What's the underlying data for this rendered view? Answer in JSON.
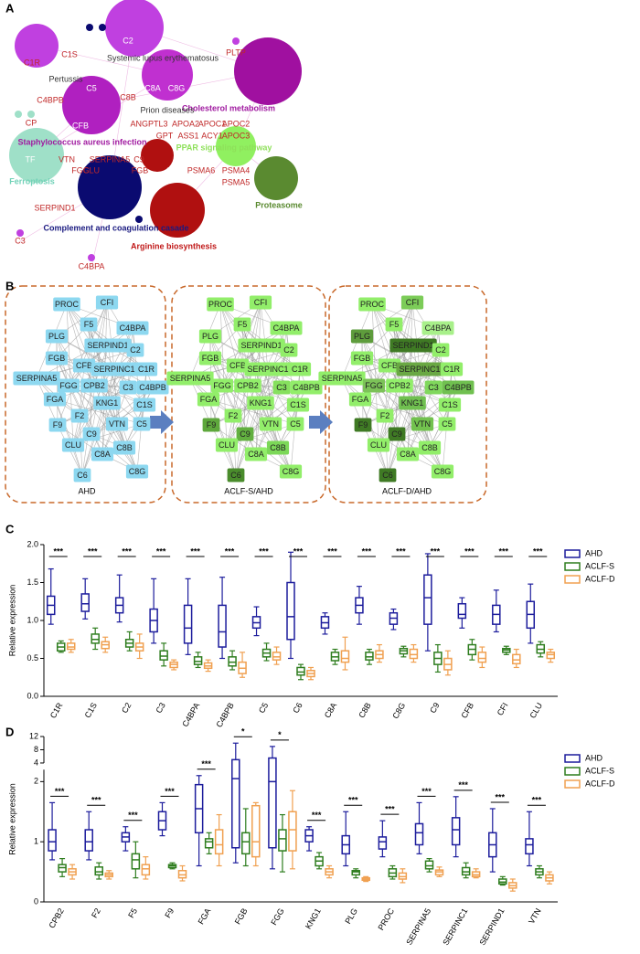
{
  "panel_a": {
    "label": "A",
    "texts": [
      {
        "label": "C1R",
        "color": "#c02828"
      },
      {
        "label": "C1S",
        "color": "#c02828"
      },
      {
        "label": "C2",
        "color": "#ffffff"
      },
      {
        "label": "Systemic lupus erythematosus",
        "color": "#333333"
      },
      {
        "label": "Pertussis",
        "color": "#333333"
      },
      {
        "label": "C4BPB",
        "color": "#c02828"
      },
      {
        "label": "C5",
        "color": "#ffffff"
      },
      {
        "label": "CFB",
        "color": "#ffffff"
      },
      {
        "label": "C8B",
        "color": "#c02828"
      },
      {
        "label": "C8A",
        "color": "#ffffff"
      },
      {
        "label": "C8G",
        "color": "#ffffff"
      },
      {
        "label": "PLTP",
        "color": "#c02828"
      },
      {
        "label": "Cholesterol metabolism",
        "color": "#a01aa0"
      },
      {
        "label": "Prion diseases",
        "color": "#333333"
      },
      {
        "label": "ANGPTL3",
        "color": "#c02828"
      },
      {
        "label": "APOA2",
        "color": "#c02828"
      },
      {
        "label": "APOC1",
        "color": "#c02828"
      },
      {
        "label": "APOC2",
        "color": "#c02828"
      },
      {
        "label": "GPT",
        "color": "#c02828"
      },
      {
        "label": "ASS1",
        "color": "#c02828"
      },
      {
        "label": "ACY1",
        "color": "#c02828"
      },
      {
        "label": "APOC3",
        "color": "#c02828"
      },
      {
        "label": "CP",
        "color": "#c02828"
      },
      {
        "label": "Staphylococcus aureus infection",
        "color": "#a01aa0"
      },
      {
        "label": "TF",
        "color": "#ffffff"
      },
      {
        "label": "VTN",
        "color": "#c02828"
      },
      {
        "label": "FGG",
        "color": "#c02828"
      },
      {
        "label": "SERPINA5",
        "color": "#c02828"
      },
      {
        "label": "CLU",
        "color": "#c02828"
      },
      {
        "label": "C9",
        "color": "#c02828"
      },
      {
        "label": "FGB",
        "color": "#c02828"
      },
      {
        "label": "PPAR signaling pathway",
        "color": "#8ee05a"
      },
      {
        "label": "Ferroptosis",
        "color": "#72d2b8"
      },
      {
        "label": "GOT1",
        "color": "#ffffff"
      },
      {
        "label": "PSMA6",
        "color": "#c02828"
      },
      {
        "label": "PSMA4",
        "color": "#c02828"
      },
      {
        "label": "Proteasome",
        "color": "#5a8a30"
      },
      {
        "label": "SERPIND1",
        "color": "#c02828"
      },
      {
        "label": "PSMA5",
        "color": "#c02828"
      },
      {
        "label": "Complement and coagulation casade",
        "color": "#1a1a80"
      },
      {
        "label": "C3",
        "color": "#c02828"
      },
      {
        "label": "Arginine biosynthesis",
        "color": "#c01818"
      },
      {
        "label": "C4BPA",
        "color": "#c02828"
      }
    ]
  },
  "panel_b": {
    "label": "B",
    "nodes": [
      "PROC",
      "CFI",
      "F5",
      "C4BPA",
      "PLG",
      "SERPIND1",
      "C2",
      "FGB",
      "CFB",
      "SERPINC1",
      "C1R",
      "SERPINA5",
      "FGG",
      "CPB2",
      "C3",
      "C4BPB",
      "FGA",
      "KNG1",
      "C1S",
      "F2",
      "VTN",
      "C5",
      "F9",
      "C9",
      "CLU",
      "C8A",
      "C8B",
      "C6",
      "C8G"
    ],
    "networks": [
      {
        "title": "AHD",
        "colors": [
          "#8dd8f0",
          "#8dd8f0",
          "#8dd8f0",
          "#8dd8f0",
          "#8dd8f0",
          "#8dd8f0",
          "#8dd8f0",
          "#8dd8f0",
          "#8dd8f0",
          "#8dd8f0",
          "#8dd8f0",
          "#8dd8f0",
          "#8dd8f0",
          "#8dd8f0",
          "#8dd8f0",
          "#8dd8f0",
          "#8dd8f0",
          "#8dd8f0",
          "#8dd8f0",
          "#8dd8f0",
          "#8dd8f0",
          "#8dd8f0",
          "#8dd8f0",
          "#8dd8f0",
          "#8dd8f0",
          "#8dd8f0",
          "#8dd8f0",
          "#8dd8f0",
          "#8dd8f0"
        ]
      },
      {
        "title": "ACLF-S/AHD",
        "colors": [
          "#92ee6a",
          "#92ee6a",
          "#92ee6a",
          "#92ee6a",
          "#92ee6a",
          "#92ee6a",
          "#92ee6a",
          "#92ee6a",
          "#92ee6a",
          "#92ee6a",
          "#92ee6a",
          "#92ee6a",
          "#92ee6a",
          "#92ee6a",
          "#86e05e",
          "#92ee6a",
          "#92ee6a",
          "#92ee6a",
          "#92ee6a",
          "#92ee6a",
          "#92ee6a",
          "#92ee6a",
          "#5ea83c",
          "#62b040",
          "#92ee6a",
          "#92ee6a",
          "#7cd858",
          "#4a8c2c",
          "#92ee6a"
        ]
      },
      {
        "title": "ACLF-D/AHD",
        "colors": [
          "#92ee6a",
          "#7ccc58",
          "#92ee6a",
          "#a8f08a",
          "#5e9c3c",
          "#3f7a24",
          "#92ee6a",
          "#92ee6a",
          "#92ee6a",
          "#6aa844",
          "#92ee6a",
          "#92ee6a",
          "#7cc258",
          "#92ee6a",
          "#80d85c",
          "#70c050",
          "#92ee6a",
          "#70c050",
          "#92ee6a",
          "#92ee6a",
          "#72c24e",
          "#92ee6a",
          "#3f7a24",
          "#3f7a24",
          "#92ee6a",
          "#92ee6a",
          "#92ee6a",
          "#3f7a24",
          "#92ee6a"
        ]
      }
    ]
  },
  "chart_data": [
    {
      "type": "box",
      "label": "C",
      "y_label": "Relative expression",
      "categories": [
        "C1R",
        "C1S",
        "C2",
        "C3",
        "C4BPA",
        "C4BPB",
        "C5",
        "C6",
        "C8A",
        "C8B",
        "C8G",
        "C9",
        "CFB",
        "CFI",
        "CLU"
      ],
      "annotations": [
        "***",
        "***",
        "***",
        "***",
        "***",
        "***",
        "***",
        "***",
        "***",
        "***",
        "***",
        "***",
        "***",
        "***",
        "***"
      ],
      "series": [
        {
          "name": "AHD",
          "color": "#1c1c9c",
          "values": [
            [
              0.95,
              1.08,
              1.2,
              1.32,
              1.68
            ],
            [
              1.02,
              1.12,
              1.22,
              1.35,
              1.55
            ],
            [
              0.98,
              1.1,
              1.2,
              1.3,
              1.6
            ],
            [
              0.7,
              0.85,
              1.0,
              1.15,
              1.55
            ],
            [
              0.55,
              0.7,
              0.9,
              1.2,
              1.55
            ],
            [
              0.5,
              0.65,
              0.85,
              1.2,
              1.57
            ],
            [
              0.8,
              0.9,
              0.97,
              1.05,
              1.18
            ],
            [
              0.5,
              0.75,
              1.05,
              1.5,
              1.9
            ],
            [
              0.82,
              0.9,
              0.97,
              1.05,
              1.1
            ],
            [
              0.95,
              1.1,
              1.2,
              1.3,
              1.45
            ],
            [
              0.88,
              0.95,
              1.03,
              1.1,
              1.15
            ],
            [
              0.6,
              0.95,
              1.3,
              1.6,
              1.88
            ],
            [
              0.9,
              1.03,
              1.08,
              1.22,
              1.3
            ],
            [
              0.85,
              0.95,
              1.08,
              1.2,
              1.4
            ],
            [
              0.7,
              0.9,
              1.08,
              1.25,
              1.48
            ]
          ]
        },
        {
          "name": "ACLF-S",
          "color": "#2e7d1e",
          "values": [
            [
              0.58,
              0.6,
              0.65,
              0.7,
              0.73
            ],
            [
              0.62,
              0.7,
              0.75,
              0.82,
              0.9
            ],
            [
              0.6,
              0.65,
              0.7,
              0.75,
              0.85
            ],
            [
              0.4,
              0.48,
              0.53,
              0.6,
              0.7
            ],
            [
              0.38,
              0.42,
              0.46,
              0.52,
              0.58
            ],
            [
              0.35,
              0.4,
              0.45,
              0.52,
              0.6
            ],
            [
              0.47,
              0.52,
              0.57,
              0.62,
              0.7
            ],
            [
              0.22,
              0.28,
              0.32,
              0.38,
              0.42
            ],
            [
              0.42,
              0.47,
              0.52,
              0.58,
              0.62
            ],
            [
              0.42,
              0.48,
              0.52,
              0.58,
              0.62
            ],
            [
              0.52,
              0.56,
              0.6,
              0.63,
              0.66
            ],
            [
              0.32,
              0.42,
              0.5,
              0.58,
              0.68
            ],
            [
              0.48,
              0.55,
              0.62,
              0.68,
              0.75
            ],
            [
              0.55,
              0.58,
              0.61,
              0.63,
              0.66
            ],
            [
              0.52,
              0.57,
              0.62,
              0.68,
              0.72
            ]
          ]
        },
        {
          "name": "ACLF-D",
          "color": "#f0a050",
          "values": [
            [
              0.58,
              0.62,
              0.65,
              0.7,
              0.75
            ],
            [
              0.58,
              0.63,
              0.68,
              0.72,
              0.78
            ],
            [
              0.5,
              0.6,
              0.65,
              0.7,
              0.82
            ],
            [
              0.35,
              0.38,
              0.42,
              0.45,
              0.48
            ],
            [
              0.33,
              0.37,
              0.4,
              0.44,
              0.48
            ],
            [
              0.25,
              0.3,
              0.37,
              0.45,
              0.58
            ],
            [
              0.42,
              0.48,
              0.52,
              0.58,
              0.65
            ],
            [
              0.22,
              0.26,
              0.3,
              0.34,
              0.38
            ],
            [
              0.35,
              0.45,
              0.5,
              0.6,
              0.78
            ],
            [
              0.45,
              0.5,
              0.55,
              0.6,
              0.68
            ],
            [
              0.45,
              0.5,
              0.55,
              0.62,
              0.68
            ],
            [
              0.28,
              0.35,
              0.42,
              0.5,
              0.6
            ],
            [
              0.38,
              0.45,
              0.5,
              0.58,
              0.65
            ],
            [
              0.38,
              0.43,
              0.48,
              0.55,
              0.62
            ],
            [
              0.45,
              0.5,
              0.55,
              0.58,
              0.62
            ]
          ]
        }
      ],
      "ylim": [
        0,
        2
      ],
      "yticks": [
        {
          "value": 0,
          "label": "0.0"
        },
        0.5,
        {
          "value": 1,
          "label": "1.0"
        },
        1.5,
        {
          "value": 2,
          "label": "2.0"
        }
      ],
      "legend": "right"
    },
    {
      "type": "box",
      "label": "D",
      "y_label": "Relative expression",
      "categories": [
        "CPB2",
        "F2",
        "F5",
        "F9",
        "FGA",
        "FGB",
        "FGG",
        "KNG1",
        "PLG",
        "PROC",
        "SERPINA5",
        "SERPINC1",
        "SERPIND1",
        "VTN"
      ],
      "annotations": [
        "***",
        "***",
        "***",
        "***",
        "***",
        "*",
        "*",
        "***",
        "***",
        "***",
        "***",
        "***",
        "***",
        "***"
      ],
      "series": [
        {
          "name": "AHD",
          "color": "#1c1c9c",
          "values": [
            [
              0.7,
              0.85,
              1.0,
              1.2,
              1.65
            ],
            [
              0.7,
              0.85,
              1.0,
              1.2,
              1.5
            ],
            [
              0.85,
              1.0,
              1.08,
              1.15,
              1.25
            ],
            [
              1.1,
              1.2,
              1.35,
              1.5,
              1.65
            ],
            [
              0.6,
              1.15,
              1.55,
              1.95,
              2.1
            ],
            [
              0.65,
              0.9,
              2.05,
              5,
              10
            ],
            [
              0.55,
              0.9,
              2.0,
              5.5,
              9
            ],
            [
              0.85,
              1.0,
              1.1,
              1.2,
              1.25
            ],
            [
              0.6,
              0.8,
              0.95,
              1.1,
              1.5
            ],
            [
              0.75,
              0.88,
              1.0,
              1.08,
              1.35
            ],
            [
              0.8,
              0.95,
              1.15,
              1.3,
              1.65
            ],
            [
              0.75,
              0.95,
              1.2,
              1.4,
              1.75
            ],
            [
              0.5,
              0.75,
              0.95,
              1.15,
              1.55
            ],
            [
              0.6,
              0.8,
              0.95,
              1.05,
              1.5
            ]
          ]
        },
        {
          "name": "ACLF-S",
          "color": "#2e7d1e",
          "values": [
            [
              0.42,
              0.5,
              0.57,
              0.62,
              0.72
            ],
            [
              0.38,
              0.45,
              0.5,
              0.58,
              0.65
            ],
            [
              0.4,
              0.55,
              0.7,
              0.8,
              1.0
            ],
            [
              0.55,
              0.57,
              0.6,
              0.62,
              0.65
            ],
            [
              0.8,
              0.9,
              1.0,
              1.05,
              1.15
            ],
            [
              0.6,
              0.8,
              1.0,
              1.15,
              1.55
            ],
            [
              0.5,
              0.85,
              1.05,
              1.2,
              1.45
            ],
            [
              0.55,
              0.6,
              0.68,
              0.75,
              0.82
            ],
            [
              0.4,
              0.45,
              0.5,
              0.52,
              0.55
            ],
            [
              0.38,
              0.42,
              0.48,
              0.55,
              0.6
            ],
            [
              0.5,
              0.55,
              0.6,
              0.68,
              0.72
            ],
            [
              0.4,
              0.45,
              0.5,
              0.57,
              0.65
            ],
            [
              0.28,
              0.3,
              0.33,
              0.38,
              0.42
            ],
            [
              0.4,
              0.45,
              0.5,
              0.55,
              0.6
            ]
          ]
        },
        {
          "name": "ACLF-D",
          "color": "#f0a050",
          "values": [
            [
              0.38,
              0.45,
              0.5,
              0.55,
              0.62
            ],
            [
              0.38,
              0.42,
              0.45,
              0.48,
              0.52
            ],
            [
              0.38,
              0.45,
              0.55,
              0.62,
              0.75
            ],
            [
              0.35,
              0.4,
              0.45,
              0.52,
              0.6
            ],
            [
              0.6,
              0.8,
              0.95,
              1.2,
              1.45
            ],
            [
              0.6,
              0.75,
              1.0,
              1.6,
              1.65
            ],
            [
              0.55,
              0.85,
              1.2,
              1.5,
              1.85
            ],
            [
              0.4,
              0.45,
              0.5,
              0.55,
              0.6
            ],
            [
              0.34,
              0.36,
              0.38,
              0.4,
              0.42
            ],
            [
              0.32,
              0.38,
              0.42,
              0.48,
              0.55
            ],
            [
              0.42,
              0.45,
              0.5,
              0.53,
              0.58
            ],
            [
              0.4,
              0.42,
              0.45,
              0.5,
              0.55
            ],
            [
              0.18,
              0.23,
              0.27,
              0.32,
              0.38
            ],
            [
              0.3,
              0.35,
              0.4,
              0.45,
              0.5
            ]
          ]
        }
      ],
      "ylim": [
        0,
        12
      ],
      "yticks": [
        0,
        1,
        2,
        4,
        8,
        12
      ],
      "y_break": [
        2.2,
        4
      ],
      "legend": "right"
    }
  ]
}
